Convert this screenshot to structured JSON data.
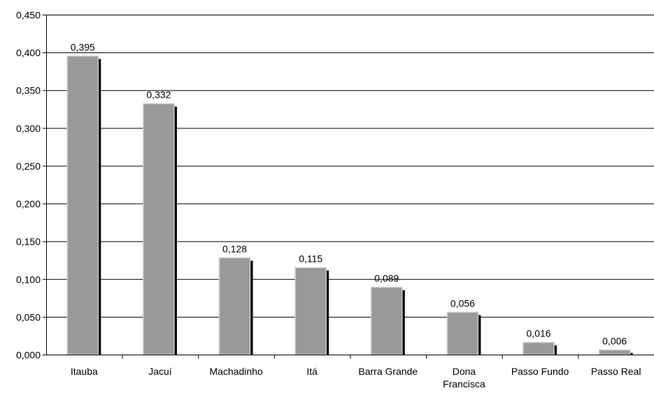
{
  "chart_data": {
    "type": "bar",
    "categories": [
      "Itauba",
      "Jacuí",
      "Machadinho",
      "Itá",
      "Barra Grande",
      "Dona Francisca",
      "Passo Fundo",
      "Passo Real"
    ],
    "category_lines": [
      [
        "Itauba"
      ],
      [
        "Jacuí"
      ],
      [
        "Machadinho"
      ],
      [
        "Itá"
      ],
      [
        "Barra Grande"
      ],
      [
        "Dona",
        "Francisca"
      ],
      [
        "Passo Fundo"
      ],
      [
        "Passo Real"
      ]
    ],
    "values": [
      0.395,
      0.332,
      0.128,
      0.115,
      0.089,
      0.056,
      0.016,
      0.006
    ],
    "value_labels": [
      "0,395",
      "0,332",
      "0,128",
      "0,115",
      "0,089",
      "0,056",
      "0,016",
      "0,006"
    ],
    "yticks": [
      0,
      0.05,
      0.1,
      0.15,
      0.2,
      0.25,
      0.3,
      0.35,
      0.4,
      0.45
    ],
    "ytick_labels": [
      "0,000",
      "0,050",
      "0,100",
      "0,150",
      "0,200",
      "0,250",
      "0,300",
      "0,350",
      "0,400",
      "0,450"
    ],
    "ylim": [
      0,
      0.45
    ],
    "grid": true,
    "colors": {
      "bar": "#999999",
      "bar_border": "#c8c8c8",
      "shadow": "#000000",
      "grid": "#000000"
    }
  }
}
